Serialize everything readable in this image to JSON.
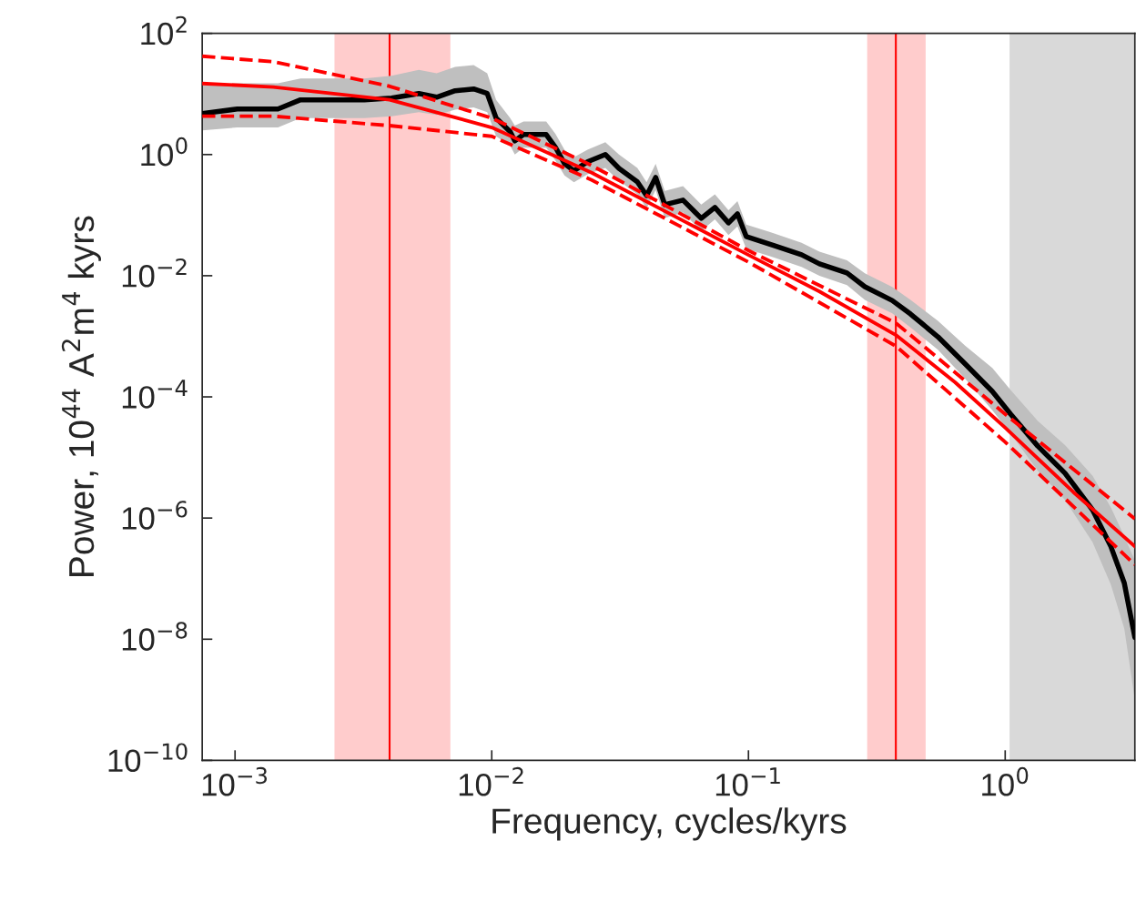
{
  "chart_data": {
    "type": "line",
    "xlabel": "Frequency, cycles/kyrs",
    "ylabel": "Power, 10$^{44}$ A$^{2}$m$^{4}$ kyrs",
    "log": "xy",
    "grid": false,
    "marker": "none",
    "xlim": [
      0.000745,
      3.2
    ],
    "ylim": [
      1e-10,
      100
    ],
    "xticks": [
      {
        "value": 0.001,
        "label": "10$^{−3}$"
      },
      {
        "value": 0.01,
        "label": "10$^{−2}$"
      },
      {
        "value": 0.1,
        "label": "10$^{−1}$"
      },
      {
        "value": 1,
        "label": "10$^{0}$"
      }
    ],
    "yticks": [
      {
        "value": 1e-10,
        "label": "10$^{−10}$"
      },
      {
        "value": 1e-08,
        "label": "10$^{−8}$"
      },
      {
        "value": 1e-06,
        "label": "10$^{−6}$"
      },
      {
        "value": 0.0001,
        "label": "10$^{−4}$"
      },
      {
        "value": 0.01,
        "label": "10$^{−2}$"
      },
      {
        "value": 1,
        "label": "10$^{0}$"
      },
      {
        "value": 100,
        "label": "10$^{2}$"
      }
    ],
    "bands": [
      {
        "axis": "x",
        "from": 0.00244,
        "to": 0.0069,
        "color": "#ffcccc"
      },
      {
        "axis": "x",
        "from": 0.29,
        "to": 0.49,
        "color": "#ffcccc"
      },
      {
        "axis": "x",
        "from": 1.04,
        "to": 3.2,
        "color": "#d9d9d9"
      }
    ],
    "ref_lines": [
      {
        "axis": "x",
        "value": 0.004,
        "color": "#ff0000",
        "line_style": "solid"
      },
      {
        "axis": "x",
        "value": 0.375,
        "color": "#ff0000",
        "line_style": "solid"
      }
    ],
    "series": [
      {
        "color": "#000000",
        "line_style": "solid",
        "x": [
          0.000745,
          0.00102,
          0.00147,
          0.0018,
          0.00319,
          0.00407,
          0.0052,
          0.0061,
          0.0072,
          0.0085,
          0.0096,
          0.0104,
          0.0118,
          0.0123,
          0.0133,
          0.0163,
          0.0177,
          0.0192,
          0.0209,
          0.0236,
          0.0277,
          0.0313,
          0.0369,
          0.0401,
          0.0435,
          0.0472,
          0.0556,
          0.0655,
          0.074,
          0.0836,
          0.0906,
          0.098,
          0.126,
          0.161,
          0.189,
          0.242,
          0.284,
          0.363,
          0.428,
          0.547,
          0.698,
          0.891,
          1.05,
          1.34,
          1.71,
          2.19,
          2.58,
          2.91,
          3.2
        ],
        "values": [
          4.75,
          5.65,
          5.65,
          8.0,
          8.0,
          8.55,
          10.2,
          8.85,
          11.3,
          12.1,
          10.2,
          4.0,
          2.38,
          1.68,
          2.14,
          2.14,
          1.32,
          0.71,
          0.54,
          0.76,
          1.0,
          0.59,
          0.354,
          0.21,
          0.42,
          0.149,
          0.177,
          0.0885,
          0.134,
          0.0745,
          0.105,
          0.0444,
          0.0313,
          0.0222,
          0.0157,
          0.0111,
          0.0066,
          0.0039,
          0.00233,
          0.00098,
          0.00035,
          0.000123,
          5.2e-05,
          1.54e-05,
          5.5e-06,
          1.36e-06,
          3.4e-07,
          8.5e-08,
          1.07e-08
        ],
        "upper": [
          14,
          15,
          15,
          18,
          18,
          20,
          25,
          22,
          28,
          30,
          22,
          8,
          4,
          3,
          3.5,
          3.5,
          2.2,
          1.2,
          0.9,
          1.2,
          1.6,
          1.0,
          0.6,
          0.35,
          0.7,
          0.25,
          0.3,
          0.15,
          0.22,
          0.12,
          0.17,
          0.07,
          0.05,
          0.035,
          0.025,
          0.018,
          0.011,
          0.0065,
          0.004,
          0.0018,
          0.0007,
          0.0003,
          0.00013,
          4e-05,
          1.6e-05,
          5e-06,
          1.5e-06,
          5e-07,
          2e-07
        ],
        "lower": [
          2.5,
          2.8,
          2.8,
          4,
          4,
          4.3,
          5,
          4.5,
          5.5,
          6,
          5,
          2,
          1.4,
          1,
          1.3,
          1.3,
          0.8,
          0.45,
          0.35,
          0.47,
          0.6,
          0.37,
          0.22,
          0.13,
          0.26,
          0.09,
          0.11,
          0.055,
          0.085,
          0.047,
          0.065,
          0.028,
          0.02,
          0.014,
          0.01,
          0.007,
          0.004,
          0.0024,
          0.0014,
          0.0006,
          0.0002,
          6e-05,
          2.5e-05,
          6e-06,
          2e-06,
          4e-07,
          8e-08,
          1.5e-08,
          1e-09
        ]
      },
      {
        "color": "#ff0000",
        "line_style": "solid",
        "x": [
          0.000745,
          0.00141,
          0.004,
          0.01,
          0.0245,
          0.1,
          0.189,
          0.375,
          0.638,
          1.0,
          1.84,
          3.2
        ],
        "values": [
          14.9,
          13,
          8.0,
          2.8,
          0.5,
          0.022,
          0.0055,
          0.00105,
          0.000174,
          3.1e-05,
          2.7e-06,
          3.4e-07
        ]
      },
      {
        "color": "#ff0000",
        "line_style": "dashed",
        "x": [
          0.000745,
          0.00141,
          0.004,
          0.01,
          0.0245,
          0.1,
          0.375,
          1.0,
          3.2
        ],
        "values": [
          42,
          34,
          13.4,
          4.0,
          0.66,
          0.026,
          0.00166,
          5.2e-05,
          9.7e-07
        ]
      },
      {
        "color": "#ff0000",
        "line_style": "dashed",
        "x": [
          0.000745,
          0.00141,
          0.004,
          0.01,
          0.0245,
          0.1,
          0.375,
          1.0,
          3.2
        ],
        "values": [
          4.3,
          4.3,
          3.0,
          2.0,
          0.38,
          0.0168,
          0.00069,
          1.8e-05,
          1.7e-07
        ]
      }
    ]
  }
}
